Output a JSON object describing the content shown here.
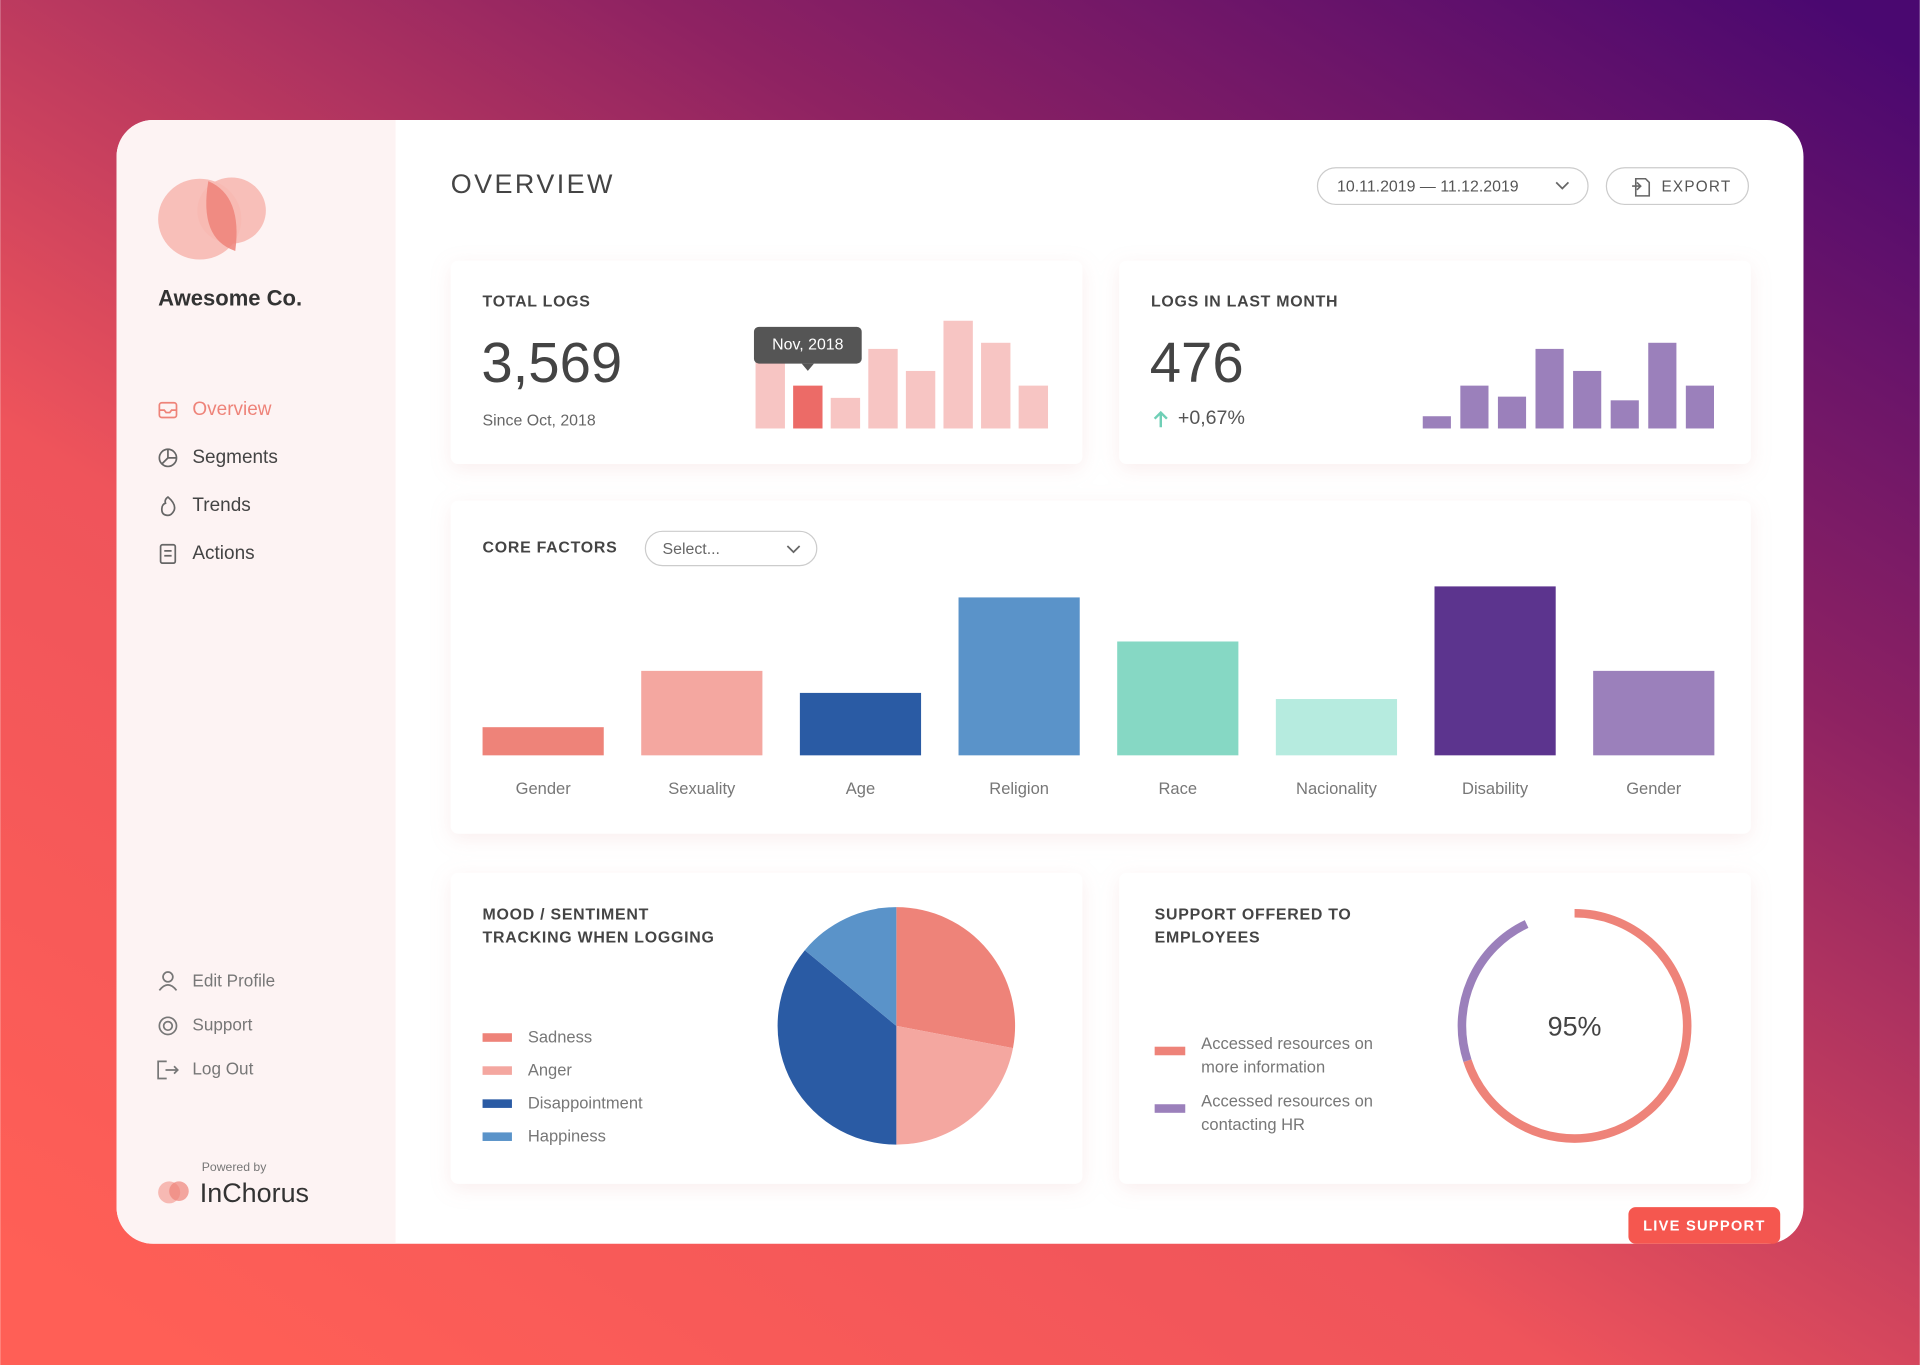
{
  "sidebar": {
    "brand": "Awesome Co.",
    "nav": [
      "Overview",
      "Segments",
      "Trends",
      "Actions"
    ],
    "active": 0,
    "account": [
      "Edit Profile",
      "Support",
      "Log Out"
    ],
    "powered_by": "Powered by",
    "vendor": "InChorus"
  },
  "header": {
    "title": "OVERVIEW",
    "date_range": "10.11.2019 — 11.12.2019",
    "export": "EXPORT"
  },
  "total_logs": {
    "title": "TOTAL LOGS",
    "value": "3,569",
    "note": "Since Oct, 2018",
    "tooltip": "Nov, 2018",
    "chart_data": {
      "type": "bar",
      "values": [
        54,
        35,
        25,
        65,
        47,
        88,
        70,
        35
      ],
      "color": "#f7c5c3",
      "highlight_index": 1,
      "highlight_color": "#ec6b67"
    }
  },
  "last_month": {
    "title": "LOGS IN LAST MONTH",
    "value": "476",
    "change": "+0,67%",
    "chart_data": {
      "type": "bar",
      "values": [
        10,
        35,
        26,
        65,
        47,
        23,
        70,
        35
      ],
      "color": "#9b80bb"
    }
  },
  "core_factors": {
    "title": "CORE FACTORS",
    "select": "Select...",
    "chart_data": {
      "type": "bar",
      "categories": [
        "Gender",
        "Sexuality",
        "Age",
        "Religion",
        "Race",
        "Nacionality",
        "Disability",
        "Gender"
      ],
      "values": [
        23,
        69,
        51,
        129,
        93,
        46,
        138,
        69
      ],
      "colors": [
        "#ee8379",
        "#f4a7a0",
        "#2a5ba4",
        "#5a93c9",
        "#86d8c4",
        "#b6ebdf",
        "#5c348e",
        "#9b80bb"
      ]
    }
  },
  "mood": {
    "title": "MOOD / SENTIMENT TRACKING WHEN LOGGING",
    "chart_data": {
      "type": "pie",
      "categories": [
        "Sadness",
        "Anger",
        "Disappointment",
        "Happiness"
      ],
      "values": [
        28,
        22,
        36,
        14
      ],
      "colors": [
        "#ee8379",
        "#f4a7a0",
        "#2a5ba4",
        "#5a93c9"
      ]
    }
  },
  "support": {
    "title": "SUPPORT OFFERED TO EMPLOYEES",
    "center_label": "95%",
    "chart_data": {
      "type": "donut",
      "series": [
        {
          "name": "Accessed resources on more information",
          "color": "#ee8379",
          "value": 70
        },
        {
          "name": "Accessed resources on contacting HR",
          "color": "#9b80bb",
          "value": 23
        }
      ]
    }
  },
  "live_support": "LIVE SUPPORT"
}
